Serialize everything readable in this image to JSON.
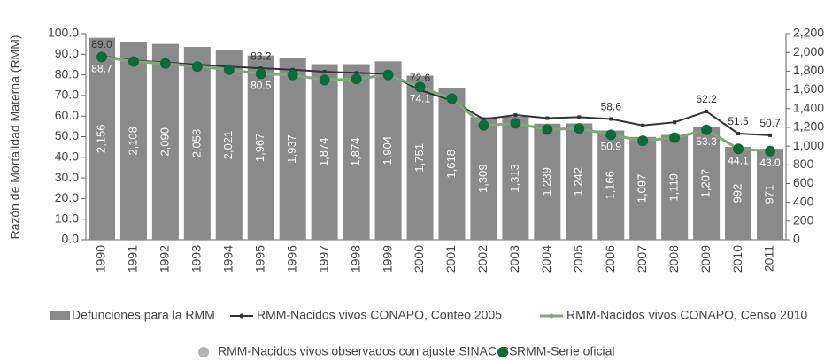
{
  "chart_data": {
    "type": "bar",
    "y_label": "Razón de Mortalidad Materna (RMM)",
    "categories": [
      "1990",
      "1991",
      "1992",
      "1993",
      "1994",
      "1995",
      "1996",
      "1997",
      "1998",
      "1999",
      "2000",
      "2001",
      "2002",
      "2003",
      "2004",
      "2005",
      "2006",
      "2007",
      "2008",
      "2009",
      "2010",
      "2011"
    ],
    "ylim": [
      0,
      100
    ],
    "yticks": [
      {
        "value": 0,
        "label": "0.0"
      },
      {
        "value": 10,
        "label": "10.0"
      },
      {
        "value": 20,
        "label": "20.0"
      },
      {
        "value": 30,
        "label": "30.0"
      },
      {
        "value": 40,
        "label": "40.0"
      },
      {
        "value": 50,
        "label": "50.0"
      },
      {
        "value": 60,
        "label": "60.0"
      },
      {
        "value": 70,
        "label": "70.0"
      },
      {
        "value": 80,
        "label": "80.0"
      },
      {
        "value": 90,
        "label": "90.0"
      },
      {
        "value": 100,
        "label": "100.0"
      }
    ],
    "y2lim": [
      0,
      2200
    ],
    "y2ticks": [
      0,
      200,
      400,
      600,
      800,
      {
        "value": 1000,
        "label": "1,000"
      },
      {
        "value": 1200,
        "label": "1,200"
      },
      {
        "value": 1400,
        "label": "1,400"
      },
      {
        "value": 1600,
        "label": "1,600"
      },
      {
        "value": 1800,
        "label": "1,800"
      },
      {
        "value": 2000,
        "label": "2,000"
      },
      {
        "value": 2200,
        "label": "2,200"
      }
    ],
    "series": [
      {
        "name": "Defunciones para la RMM",
        "type": "bar",
        "axis": "y2",
        "color": "#8a8a8a",
        "values": [
          2156,
          2108,
          2090,
          2058,
          2021,
          1967,
          1937,
          1874,
          1874,
          1904,
          1751,
          1618,
          1309,
          1313,
          1239,
          1242,
          1166,
          1097,
          1119,
          1207,
          992,
          971
        ],
        "value_labels": [
          "2,156",
          "2,108",
          "2,090",
          "2,058",
          "2,021",
          "1,967",
          "1,937",
          "1,874",
          "1,874",
          "1,904",
          "1,751",
          "1,618",
          "1,309",
          "1,313",
          "1,239",
          "1,242",
          "1,166",
          "1,097",
          "1,119",
          "1,207",
          "992",
          "971"
        ]
      },
      {
        "name": "RMM-Nacidos vivos CONAPO, Conteo 2005",
        "type": "line",
        "color": "#333333",
        "values": [
          89.0,
          87.0,
          86.0,
          85.0,
          84.0,
          83.2,
          82.5,
          81.5,
          81.0,
          80.5,
          72.6,
          67.5,
          58.5,
          60.5,
          59.0,
          59.5,
          58.6,
          55.5,
          57.0,
          62.2,
          51.5,
          50.7
        ],
        "value_labels": [
          "89.0",
          null,
          null,
          null,
          null,
          "83.2",
          null,
          null,
          null,
          null,
          "72.6",
          null,
          null,
          null,
          null,
          null,
          "58.6",
          null,
          null,
          "62.2",
          "51.5",
          "50.7"
        ]
      },
      {
        "name": "RMM-Nacidos vivos CONAPO, Censo 2010",
        "type": "line",
        "color": "#7fa87a",
        "values": [
          88.7,
          86.5,
          85.5,
          84.0,
          82.5,
          80.5,
          80.0,
          77.5,
          78.0,
          80.0,
          74.1,
          68.5,
          55.5,
          56.5,
          53.5,
          54.0,
          50.9,
          48.0,
          49.5,
          53.3,
          44.1,
          43.0
        ],
        "value_labels": [
          "88.7",
          null,
          null,
          null,
          null,
          "80.5",
          null,
          null,
          null,
          null,
          "74.1",
          null,
          null,
          null,
          null,
          null,
          "50.9",
          null,
          null,
          "53.3",
          "44.1",
          "43.0"
        ]
      },
      {
        "name": "RMM-Nacidos vivos observados con ajuste SINAC-SS",
        "type": "dots",
        "color": "#b3b3b3",
        "values": [
          null,
          null,
          null,
          null,
          null,
          null,
          null,
          null,
          null,
          null,
          null,
          null,
          null,
          null,
          null,
          null,
          null,
          null,
          null,
          null,
          null,
          null
        ]
      },
      {
        "name": "RMM-Serie oficial",
        "type": "dots",
        "color": "#0d6b3a",
        "values": [
          88.7,
          86.5,
          85.5,
          84.0,
          82.5,
          80.5,
          80.0,
          77.5,
          78.0,
          80.0,
          74.1,
          68.5,
          55.5,
          56.5,
          53.5,
          54.0,
          50.9,
          48.0,
          49.5,
          53.3,
          44.1,
          43.0
        ]
      }
    ]
  }
}
